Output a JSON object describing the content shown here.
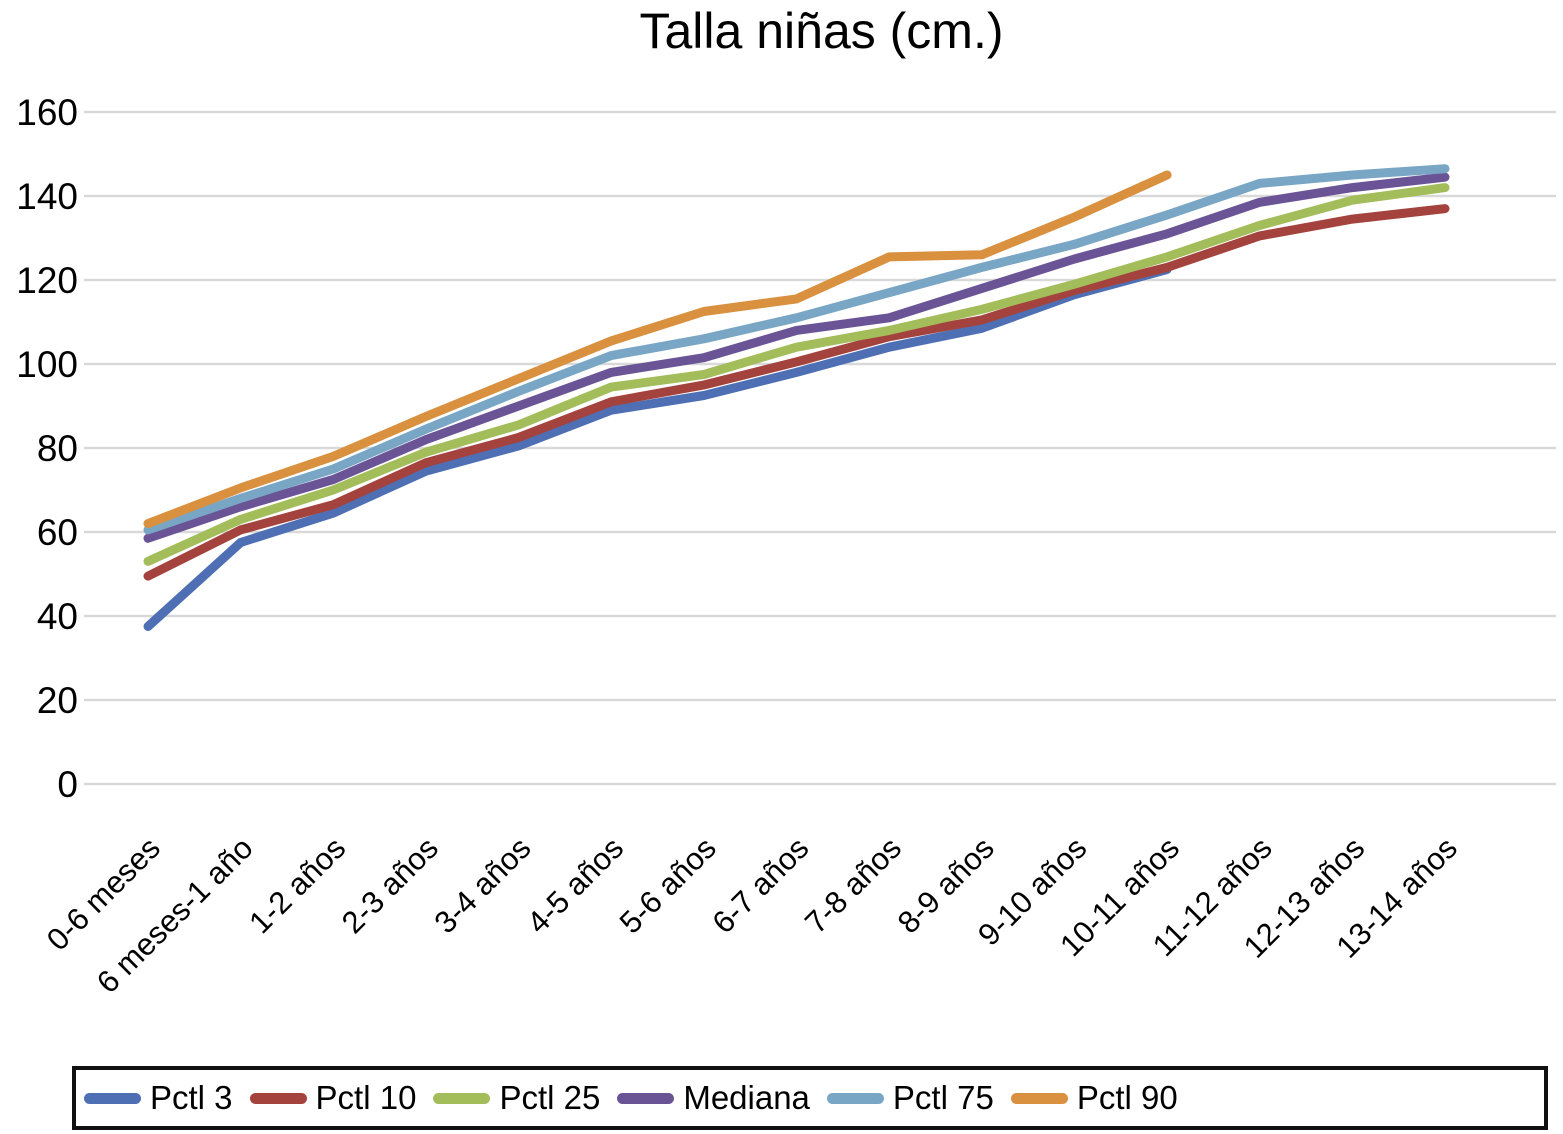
{
  "chart_data": {
    "type": "line",
    "title": "Talla niñas (cm.)",
    "xlabel": "",
    "ylabel": "",
    "ylim": [
      0,
      160
    ],
    "yticks": [
      0,
      20,
      40,
      60,
      80,
      100,
      120,
      140,
      160
    ],
    "grid": "horizontal",
    "legend_position": "bottom-box",
    "gridline_color": "#d9d9d9",
    "categories": [
      "0-6 meses",
      "6 meses-1 año",
      "1-2 años",
      "2-3 años",
      "3-4 años",
      "4-5 años",
      "5-6 años",
      "6-7 años",
      "7-8 años",
      "8-9 años",
      "9-10 años",
      "10-11 años",
      "11-12 años",
      "12-13 años",
      "13-14 años"
    ],
    "series": [
      {
        "name": "Pctl 3",
        "color": "#4e6fb4",
        "values": [
          37.5,
          57.5,
          64.5,
          74.5,
          80.5,
          89,
          92.5,
          98,
          104,
          108.5,
          116.5,
          122.5,
          null,
          null,
          null
        ]
      },
      {
        "name": "Pctl 10",
        "color": "#a4433d",
        "values": [
          49.5,
          60.5,
          66.5,
          76.5,
          82.5,
          91,
          95,
          100.5,
          106.5,
          110.5,
          117.5,
          123,
          130.5,
          134.5,
          137
        ]
      },
      {
        "name": "Pctl 25",
        "color": "#a3bd5b",
        "values": [
          53,
          63,
          70,
          79,
          85.5,
          94.5,
          97.5,
          104,
          108,
          113,
          119,
          125.5,
          133,
          139,
          142
        ]
      },
      {
        "name": "Mediana",
        "color": "#6a5496",
        "values": [
          58.5,
          66,
          72.5,
          82,
          90,
          98,
          101.5,
          108,
          111,
          118,
          125,
          131,
          138.5,
          142,
          144.5
        ]
      },
      {
        "name": "Pctl 75",
        "color": "#79a6c4",
        "values": [
          60.5,
          68,
          75,
          84.5,
          93.5,
          102,
          106,
          111,
          117,
          123,
          128.5,
          135.5,
          143,
          145,
          146.5
        ]
      },
      {
        "name": "Pctl 90",
        "color": "#d9903f",
        "values": [
          62,
          70.5,
          78,
          87.5,
          96.5,
          105.5,
          112.5,
          115.5,
          125.5,
          126,
          135,
          145,
          null,
          null,
          null
        ]
      }
    ]
  }
}
